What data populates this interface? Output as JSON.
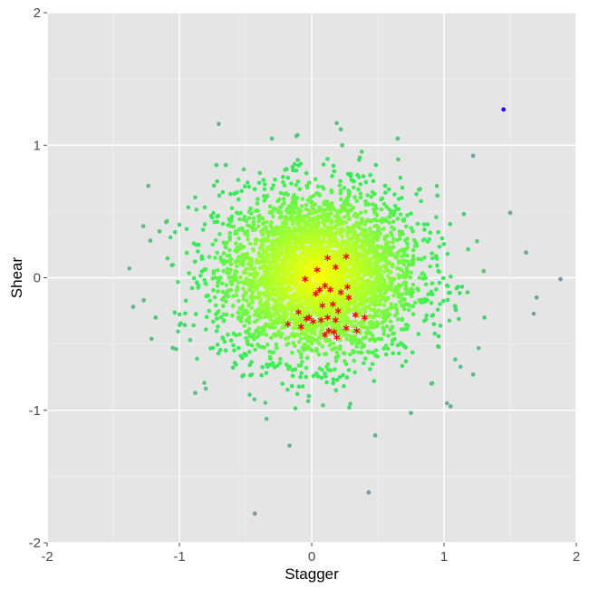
{
  "chart_data": {
    "type": "scatter",
    "title": "",
    "xlabel": "Stagger",
    "ylabel": "Shear",
    "xlim": [
      -2,
      2
    ],
    "ylim": [
      -2,
      2
    ],
    "grid": true,
    "legend": "none",
    "xticks": [
      -2,
      -1,
      0,
      1,
      2
    ],
    "yticks": [
      -2,
      -1,
      0,
      1,
      2
    ],
    "xtick_labels": [
      "-2",
      "-1",
      "0",
      "1",
      "2"
    ],
    "ytick_labels": [
      "-2",
      "-1",
      "0",
      "1",
      "2"
    ],
    "colors": {
      "panel_background": "#e5e5e5",
      "grid_major": "#ffffff",
      "grid_minor": "#f2f2f2",
      "density_center": "#ffff00",
      "density_mid": "#99ff33",
      "density_edge": "#33ee55",
      "sparse": "#7799aa",
      "outlier": "#3300ff",
      "highlight": "#ff0000"
    },
    "series": [
      {
        "marker": "dot",
        "color": "density-gradient",
        "cloud": {
          "count": 3600,
          "center": [
            0.05,
            0.02
          ],
          "sd": [
            0.38,
            0.32
          ]
        },
        "x": [
          -1.35,
          -1.27,
          -1.18,
          -1.22,
          -1.15,
          -1.1,
          1.45,
          1.22,
          1.5,
          1.62,
          1.7,
          1.88,
          1.22,
          1.05,
          -0.43,
          0.43,
          0.48,
          -0.88,
          -1.05,
          -0.72,
          -0.65,
          0.65,
          -0.3,
          0.22,
          0.23,
          1.15,
          1.3,
          -1.0,
          0.95,
          0.75
        ],
        "y": [
          -0.22,
          -0.17,
          -0.3,
          0.28,
          0.35,
          0.42,
          1.27,
          0.92,
          0.49,
          0.19,
          -0.15,
          -0.01,
          -0.73,
          -0.97,
          -1.78,
          -1.62,
          -1.19,
          -0.87,
          -0.53,
          0.85,
          0.85,
          1.05,
          1.05,
          1.12,
          1.0,
          0.48,
          0.05,
          0.4,
          0.62,
          -1.02
        ]
      },
      {
        "marker": "asterisk",
        "color": "#ff0000",
        "x": [
          0.12,
          0.26,
          0.18,
          0.04,
          -0.05,
          0.1,
          0.27,
          0.06,
          0.14,
          0.22,
          0.28,
          0.08,
          0.16,
          0.03,
          -0.1,
          -0.02,
          0.2,
          0.12,
          0.33,
          0.4,
          0.07,
          0.01,
          0.18,
          0.26,
          -0.18,
          -0.08,
          0.13,
          0.17,
          0.34,
          0.1,
          0.19,
          -0.04
        ],
        "y": [
          0.15,
          0.16,
          0.08,
          0.06,
          -0.01,
          -0.06,
          -0.07,
          -0.09,
          -0.09,
          -0.11,
          -0.15,
          -0.21,
          -0.2,
          -0.12,
          -0.26,
          -0.3,
          -0.25,
          -0.3,
          -0.28,
          -0.3,
          -0.32,
          -0.33,
          -0.32,
          -0.38,
          -0.35,
          -0.37,
          -0.4,
          -0.41,
          -0.4,
          -0.43,
          -0.45,
          -0.31
        ]
      }
    ]
  }
}
